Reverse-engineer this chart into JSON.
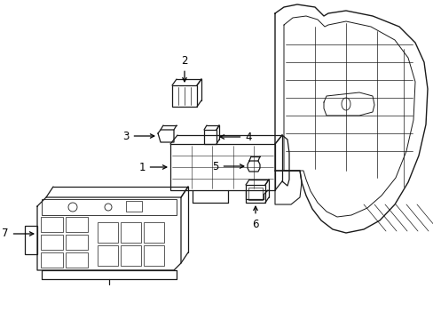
{
  "background_color": "#ffffff",
  "line_color": "#1a1a1a",
  "text_color": "#000000",
  "figsize": [
    4.89,
    3.6
  ],
  "dpi": 100
}
